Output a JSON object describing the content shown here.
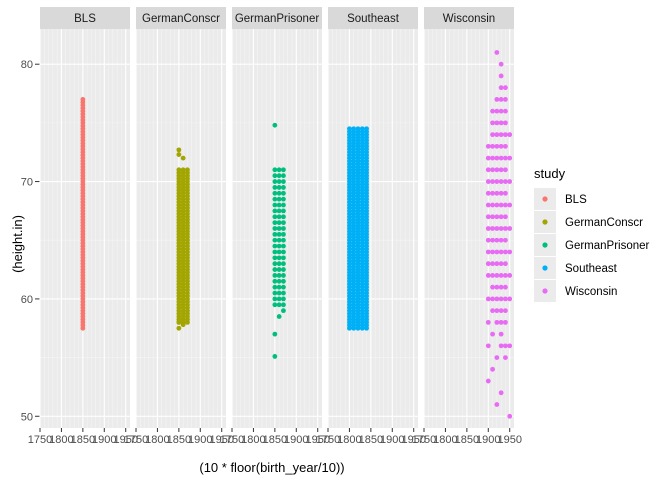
{
  "chart_data": {
    "type": "scatter",
    "facet_by": "study",
    "xlabel": "(10 * floor(birth_year/10))",
    "ylabel": "(height.in)",
    "xlim": [
      1750,
      1960
    ],
    "ylim": [
      49,
      83
    ],
    "x_ticks": [
      "1750",
      "1800",
      "1850",
      "1900",
      "1950"
    ],
    "y_ticks": [
      50,
      60,
      70,
      80
    ],
    "grid": true,
    "legend": {
      "title": "study",
      "position": "right",
      "entries": [
        "BLS",
        "GermanConscr",
        "GermanPrisoner",
        "Southeast",
        "Wisconsin"
      ]
    },
    "series": [
      {
        "name": "BLS",
        "color": "#F8766D",
        "x": [
          1850
        ],
        "y_min": 57.5,
        "y_max": 77,
        "y_step": 0.25,
        "outliers": []
      },
      {
        "name": "GermanConscr",
        "color": "#A3A500",
        "x": [
          1850,
          1860,
          1870
        ],
        "y_min": 58,
        "y_max": 71,
        "y_step": 0.25,
        "outliers": [
          [
            1850,
            72.7
          ],
          [
            1850,
            72.3
          ],
          [
            1850,
            57.5
          ],
          [
            1860,
            57.8
          ],
          [
            1860,
            72.0
          ],
          [
            1850,
            58.0
          ]
        ]
      },
      {
        "name": "GermanPrisoner",
        "color": "#00BF7D",
        "x": [
          1850,
          1860,
          1870
        ],
        "y_min": 59.5,
        "y_max": 71.3,
        "y_step": 0.5,
        "outliers": [
          [
            1850,
            74.8
          ],
          [
            1850,
            57.0
          ],
          [
            1850,
            55.1
          ],
          [
            1860,
            58.5
          ],
          [
            1870,
            59.0
          ]
        ]
      },
      {
        "name": "Southeast",
        "color": "#00B0F6",
        "x": [
          1800,
          1810,
          1820,
          1830,
          1840
        ],
        "y_min": 57.5,
        "y_max": 74.7,
        "y_step": 0.25,
        "outliers": []
      },
      {
        "name": "Wisconsin",
        "color": "#E76BF3",
        "points": [
          [
            1900,
            53
          ],
          [
            1900,
            56
          ],
          [
            1900,
            58
          ],
          [
            1900,
            60
          ],
          [
            1900,
            62
          ],
          [
            1900,
            63
          ],
          [
            1900,
            64
          ],
          [
            1900,
            65
          ],
          [
            1900,
            66
          ],
          [
            1900,
            67
          ],
          [
            1900,
            68
          ],
          [
            1900,
            69
          ],
          [
            1900,
            70
          ],
          [
            1900,
            71
          ],
          [
            1900,
            72
          ],
          [
            1900,
            73
          ],
          [
            1910,
            54
          ],
          [
            1910,
            57
          ],
          [
            1910,
            59
          ],
          [
            1910,
            60
          ],
          [
            1910,
            61
          ],
          [
            1910,
            62
          ],
          [
            1910,
            63
          ],
          [
            1910,
            64
          ],
          [
            1910,
            65
          ],
          [
            1910,
            66
          ],
          [
            1910,
            67
          ],
          [
            1910,
            68
          ],
          [
            1910,
            69
          ],
          [
            1910,
            70
          ],
          [
            1910,
            71
          ],
          [
            1910,
            72
          ],
          [
            1910,
            73
          ],
          [
            1910,
            74
          ],
          [
            1910,
            75
          ],
          [
            1910,
            76
          ],
          [
            1920,
            51
          ],
          [
            1920,
            55
          ],
          [
            1920,
            58
          ],
          [
            1920,
            59
          ],
          [
            1920,
            60
          ],
          [
            1920,
            61
          ],
          [
            1920,
            62
          ],
          [
            1920,
            63
          ],
          [
            1920,
            64
          ],
          [
            1920,
            65
          ],
          [
            1920,
            66
          ],
          [
            1920,
            67
          ],
          [
            1920,
            68
          ],
          [
            1920,
            69
          ],
          [
            1920,
            70
          ],
          [
            1920,
            71
          ],
          [
            1920,
            72
          ],
          [
            1920,
            73
          ],
          [
            1920,
            74
          ],
          [
            1920,
            75
          ],
          [
            1920,
            76
          ],
          [
            1920,
            77
          ],
          [
            1920,
            81
          ],
          [
            1930,
            52
          ],
          [
            1930,
            56
          ],
          [
            1930,
            57
          ],
          [
            1930,
            58
          ],
          [
            1930,
            59
          ],
          [
            1930,
            60
          ],
          [
            1930,
            61
          ],
          [
            1930,
            62
          ],
          [
            1930,
            63
          ],
          [
            1930,
            64
          ],
          [
            1930,
            65
          ],
          [
            1930,
            66
          ],
          [
            1930,
            67
          ],
          [
            1930,
            68
          ],
          [
            1930,
            69
          ],
          [
            1930,
            70
          ],
          [
            1930,
            71
          ],
          [
            1930,
            72
          ],
          [
            1930,
            73
          ],
          [
            1930,
            74
          ],
          [
            1930,
            75
          ],
          [
            1930,
            76
          ],
          [
            1930,
            77
          ],
          [
            1930,
            78
          ],
          [
            1930,
            79
          ],
          [
            1930,
            80
          ],
          [
            1940,
            55
          ],
          [
            1940,
            56
          ],
          [
            1940,
            58
          ],
          [
            1940,
            59
          ],
          [
            1940,
            60
          ],
          [
            1940,
            61
          ],
          [
            1940,
            62
          ],
          [
            1940,
            63
          ],
          [
            1940,
            64
          ],
          [
            1940,
            65
          ],
          [
            1940,
            66
          ],
          [
            1940,
            67
          ],
          [
            1940,
            68
          ],
          [
            1940,
            69
          ],
          [
            1940,
            70
          ],
          [
            1940,
            71
          ],
          [
            1940,
            72
          ],
          [
            1940,
            73
          ],
          [
            1940,
            74
          ],
          [
            1940,
            75
          ],
          [
            1940,
            76
          ],
          [
            1940,
            77
          ],
          [
            1940,
            78
          ],
          [
            1950,
            50
          ],
          [
            1950,
            56
          ],
          [
            1950,
            60
          ],
          [
            1950,
            62
          ],
          [
            1950,
            64
          ],
          [
            1950,
            66
          ],
          [
            1950,
            68
          ],
          [
            1950,
            70
          ],
          [
            1950,
            72
          ],
          [
            1950,
            74
          ]
        ]
      }
    ]
  }
}
